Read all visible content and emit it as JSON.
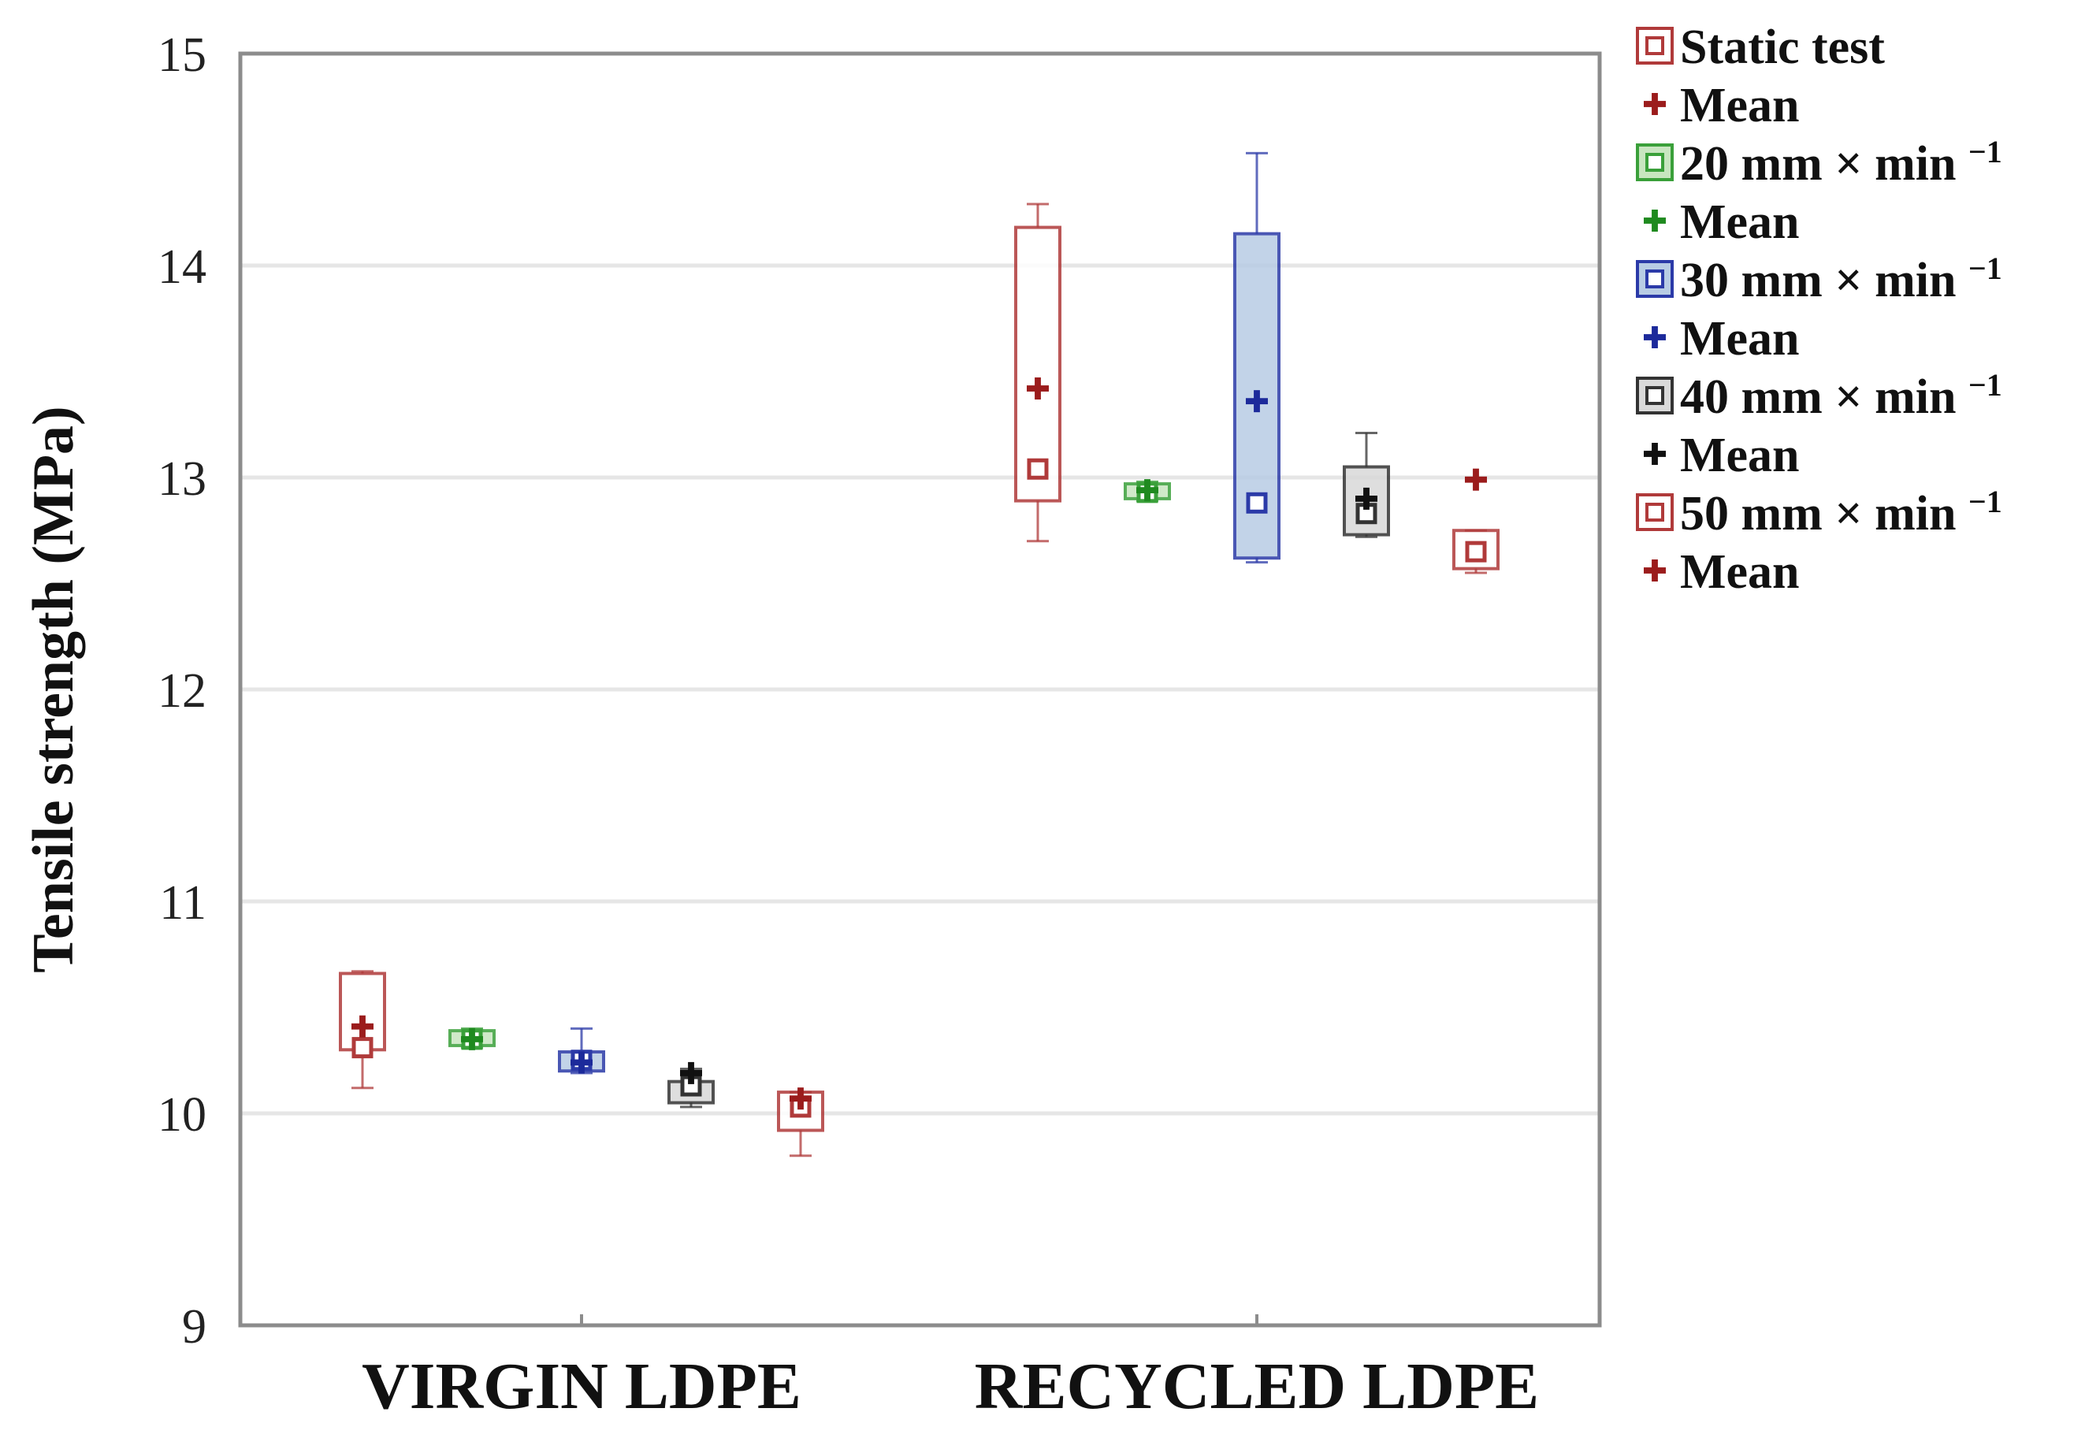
{
  "chart_data": {
    "type": "box",
    "title": "",
    "xlabel": "",
    "ylabel": "Tensile strength (MPa)",
    "ylim": [
      9,
      15
    ],
    "yticks": [
      9,
      10,
      11,
      12,
      13,
      14,
      15
    ],
    "grid": true,
    "legend_position": "right",
    "categories": [
      "VIRGIN LDPE",
      "RECYCLED LDPE"
    ],
    "series": [
      {
        "name": "Static test",
        "name_base": "Static test",
        "name_sup": "",
        "color": "#b03a3a",
        "fill": "#ffffff",
        "mean_color": "#9b1c1c",
        "mean_label": "Mean",
        "boxes": [
          {
            "category": "VIRGIN LDPE",
            "whisker_low": 10.12,
            "q1": 10.3,
            "median": 10.31,
            "q3": 10.66,
            "whisker_high": 10.67,
            "mean": 10.41
          },
          {
            "category": "RECYCLED LDPE",
            "whisker_low": 12.7,
            "q1": 12.89,
            "median": 13.04,
            "q3": 14.18,
            "whisker_high": 14.29,
            "mean": 13.42
          }
        ]
      },
      {
        "name": "20 mm × min −1",
        "name_base": "20 mm × min ",
        "name_sup": "−1",
        "color": "#3aa03a",
        "fill": "#c8e6c0",
        "mean_color": "#1f8a1f",
        "mean_label": "Mean",
        "boxes": [
          {
            "category": "VIRGIN LDPE",
            "whisker_low": 10.31,
            "q1": 10.32,
            "median": 10.35,
            "q3": 10.39,
            "whisker_high": 10.4,
            "mean": 10.35
          },
          {
            "category": "RECYCLED LDPE",
            "whisker_low": 12.89,
            "q1": 12.9,
            "median": 12.93,
            "q3": 12.97,
            "whisker_high": 12.98,
            "mean": 12.94
          }
        ]
      },
      {
        "name": "30 mm × min −1",
        "name_base": "30 mm × min ",
        "name_sup": "−1",
        "color": "#2b3aa8",
        "fill": "#b8cce4",
        "mean_color": "#1c2a9b",
        "mean_label": "Mean",
        "boxes": [
          {
            "category": "VIRGIN LDPE",
            "whisker_low": 10.19,
            "q1": 10.2,
            "median": 10.25,
            "q3": 10.29,
            "whisker_high": 10.4,
            "mean": 10.24
          },
          {
            "category": "RECYCLED LDPE",
            "whisker_low": 12.6,
            "q1": 12.62,
            "median": 12.88,
            "q3": 14.15,
            "whisker_high": 14.53,
            "mean": 13.36
          }
        ]
      },
      {
        "name": "40 mm × min −1",
        "name_base": "40 mm × min ",
        "name_sup": "−1",
        "color": "#333333",
        "fill": "#d9d9d9",
        "mean_color": "#111111",
        "mean_label": "Mean",
        "boxes": [
          {
            "category": "VIRGIN LDPE",
            "whisker_low": 10.03,
            "q1": 10.05,
            "median": 10.13,
            "q3": 10.15,
            "whisker_high": 10.21,
            "mean": 10.19
          },
          {
            "category": "RECYCLED LDPE",
            "whisker_low": 12.72,
            "q1": 12.73,
            "median": 12.83,
            "q3": 13.05,
            "whisker_high": 13.21,
            "mean": 12.9
          }
        ]
      },
      {
        "name": "50 mm × min −1",
        "name_base": "50 mm × min ",
        "name_sup": "−1",
        "color": "#b03a3a",
        "fill": "#ffffff",
        "mean_color": "#9b1c1c",
        "mean_label": "Mean",
        "boxes": [
          {
            "category": "VIRGIN LDPE",
            "whisker_low": 9.8,
            "q1": 9.92,
            "median": 10.03,
            "q3": 10.1,
            "whisker_high": 10.1,
            "mean": 10.07
          },
          {
            "category": "RECYCLED LDPE",
            "whisker_low": 12.55,
            "q1": 12.57,
            "median": 12.65,
            "q3": 12.75,
            "whisker_high": 12.75,
            "mean": 12.99
          }
        ]
      }
    ]
  }
}
